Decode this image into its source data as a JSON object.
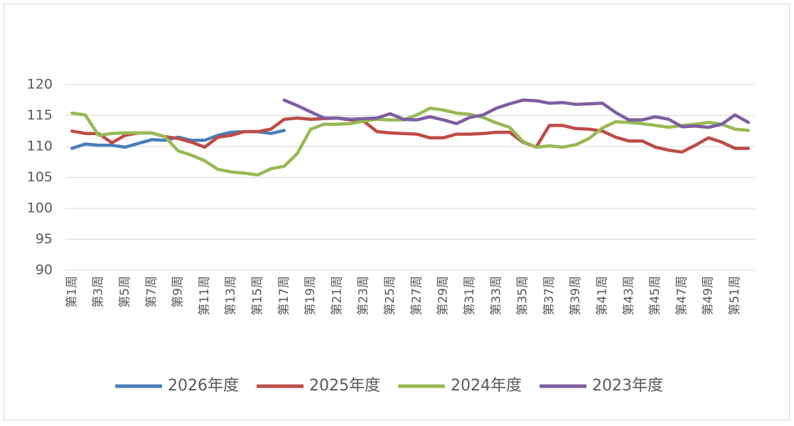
{
  "chart_data": {
    "type": "line",
    "categories": [
      "第1周",
      null,
      "第3周",
      null,
      "第5周",
      null,
      "第7周",
      null,
      "第9周",
      null,
      "第11周",
      null,
      "第13周",
      null,
      "第15周",
      null,
      "第17周",
      null,
      "第19周",
      null,
      "第21周",
      null,
      "第23周",
      null,
      "第25周",
      null,
      "第27周",
      null,
      "第29周",
      null,
      "第31周",
      null,
      "第33周",
      null,
      "第35周",
      null,
      "第37周",
      null,
      "第39周",
      null,
      "第41周",
      null,
      "第43周",
      null,
      "第45周",
      null,
      "第47周",
      null,
      "第49周",
      null,
      "第51周",
      null
    ],
    "ylim": [
      90,
      120
    ],
    "yticks": [
      90,
      95,
      100,
      105,
      110,
      115,
      120
    ],
    "grid": true,
    "legend": "bottom",
    "series": [
      {
        "name": "2026年度",
        "color": "#4a7ebb",
        "values": [
          109.7,
          110.4,
          110.2,
          110.2,
          109.9,
          110.5,
          111.1,
          111.0,
          111.5,
          111.0,
          111.0,
          111.8,
          112.3,
          112.4,
          112.4,
          112.1,
          112.6,
          null,
          null,
          null,
          null,
          null,
          null,
          null,
          null,
          null,
          null,
          null,
          null,
          null,
          null,
          null,
          null,
          null,
          null,
          null,
          null,
          null,
          null,
          null,
          null,
          null,
          null,
          null,
          null,
          null,
          null,
          null,
          null,
          null,
          null,
          null
        ]
      },
      {
        "name": "2025年度",
        "color": "#be4b48",
        "values": [
          112.5,
          112.1,
          112.1,
          110.6,
          111.8,
          112.2,
          112.2,
          111.6,
          111.3,
          110.7,
          109.9,
          111.5,
          111.8,
          112.4,
          112.4,
          112.8,
          114.4,
          114.6,
          114.4,
          114.5,
          114.6,
          114.3,
          114.1,
          112.4,
          112.2,
          112.1,
          112.0,
          111.4,
          111.4,
          112.0,
          112.0,
          112.1,
          112.3,
          112.3,
          110.7,
          109.9,
          113.4,
          113.4,
          112.9,
          112.8,
          112.5,
          111.5,
          110.9,
          110.9,
          109.9,
          109.4,
          109.1,
          110.2,
          111.4,
          110.7,
          109.7,
          109.7
        ]
      },
      {
        "name": "2024年度",
        "color": "#98b954",
        "values": [
          115.4,
          115.1,
          111.8,
          112.1,
          112.2,
          112.2,
          112.2,
          111.6,
          109.3,
          108.6,
          107.7,
          106.3,
          105.9,
          105.7,
          105.4,
          106.4,
          106.8,
          108.9,
          112.8,
          113.6,
          113.6,
          113.7,
          114.1,
          114.4,
          114.3,
          114.3,
          115.1,
          116.2,
          115.9,
          115.4,
          115.2,
          114.7,
          113.8,
          113.1,
          110.8,
          109.9,
          110.1,
          109.9,
          110.3,
          111.3,
          113.0,
          114.0,
          113.9,
          113.7,
          113.4,
          113.1,
          113.4,
          113.6,
          113.9,
          113.6,
          112.8,
          112.6
        ]
      },
      {
        "name": "2023年度",
        "color": "#7d5fa0",
        "values": [
          null,
          null,
          null,
          null,
          null,
          null,
          null,
          null,
          null,
          null,
          null,
          null,
          null,
          null,
          null,
          null,
          117.5,
          116.6,
          115.6,
          114.6,
          114.6,
          114.4,
          114.5,
          114.6,
          115.3,
          114.4,
          114.3,
          114.8,
          114.3,
          113.7,
          114.7,
          115.1,
          116.2,
          116.9,
          117.5,
          117.4,
          117.0,
          117.1,
          116.8,
          116.9,
          117.0,
          115.5,
          114.3,
          114.3,
          114.8,
          114.4,
          113.2,
          113.3,
          113.1,
          113.6,
          115.1,
          113.9
        ]
      }
    ]
  }
}
